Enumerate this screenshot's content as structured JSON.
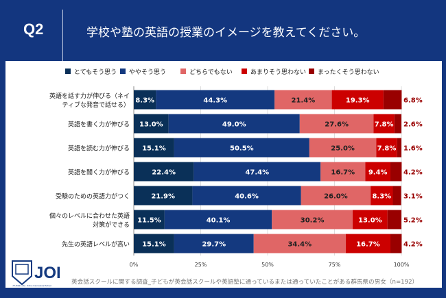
{
  "header": {
    "question": "Q2",
    "title": "学校や塾の英語の授業のイメージを教えてください。"
  },
  "footer": {
    "note": "英会話スクールに関する調査_子どもが英会話スクールや英語塾に通っているまたは通っていたことがある群馬県の男女（n=192）",
    "logo": "JOI",
    "logo_sub": "JYUKEE Labo. Online International School"
  },
  "chart_data": {
    "type": "bar",
    "orientation": "horizontal",
    "stacked": true,
    "legend_position": "top",
    "grid": true,
    "xlim": [
      0,
      100
    ],
    "xticks": [
      "0%",
      "25%",
      "50%",
      "75%",
      "100%"
    ],
    "categories": [
      "英語を話す力が伸びる（ネイティブな発音で話せる）",
      "英語を書く力が伸びる",
      "英語を読む力が伸びる",
      "英語を聞く力が伸びる",
      "受験のための英語力がつく",
      "個々のレベルに合わせた英語対策ができる",
      "先生の英語レベルが高い"
    ],
    "category_lines": [
      [
        "英語を話す力が伸びる（ネイ",
        "ティブな発音で話せる）"
      ],
      [
        "英語を書く力が伸びる"
      ],
      [
        "英語を読む力が伸びる"
      ],
      [
        "英語を聞く力が伸びる"
      ],
      [
        "受験のための英語力がつく"
      ],
      [
        "個々のレベルに合わせた英語",
        "対策ができる"
      ],
      [
        "先生の英語レベルが高い"
      ]
    ],
    "series": [
      {
        "name": "とてもそう思う",
        "color": "#0a3058",
        "label_color": "#ffffff",
        "values": [
          8.3,
          13.0,
          15.1,
          22.4,
          21.9,
          11.5,
          15.1
        ]
      },
      {
        "name": "ややそう思う",
        "color": "#14397f",
        "label_color": "#ffffff",
        "values": [
          44.3,
          49.0,
          50.5,
          47.4,
          40.6,
          40.1,
          29.7
        ]
      },
      {
        "name": "どちらでもない",
        "color": "#e06666",
        "label_color": "#222222",
        "values": [
          21.4,
          27.6,
          25.0,
          16.7,
          26.0,
          30.2,
          34.4
        ]
      },
      {
        "name": "あまりそう思わない",
        "color": "#cc0000",
        "label_color": "#ffffff",
        "values": [
          19.3,
          7.8,
          7.8,
          9.4,
          8.3,
          13.0,
          16.7
        ]
      },
      {
        "name": "まったくそう思わない",
        "color": "#990000",
        "label_color": "#ffffff",
        "values": [
          6.8,
          2.6,
          1.6,
          4.2,
          3.1,
          5.2,
          4.2
        ]
      }
    ]
  }
}
